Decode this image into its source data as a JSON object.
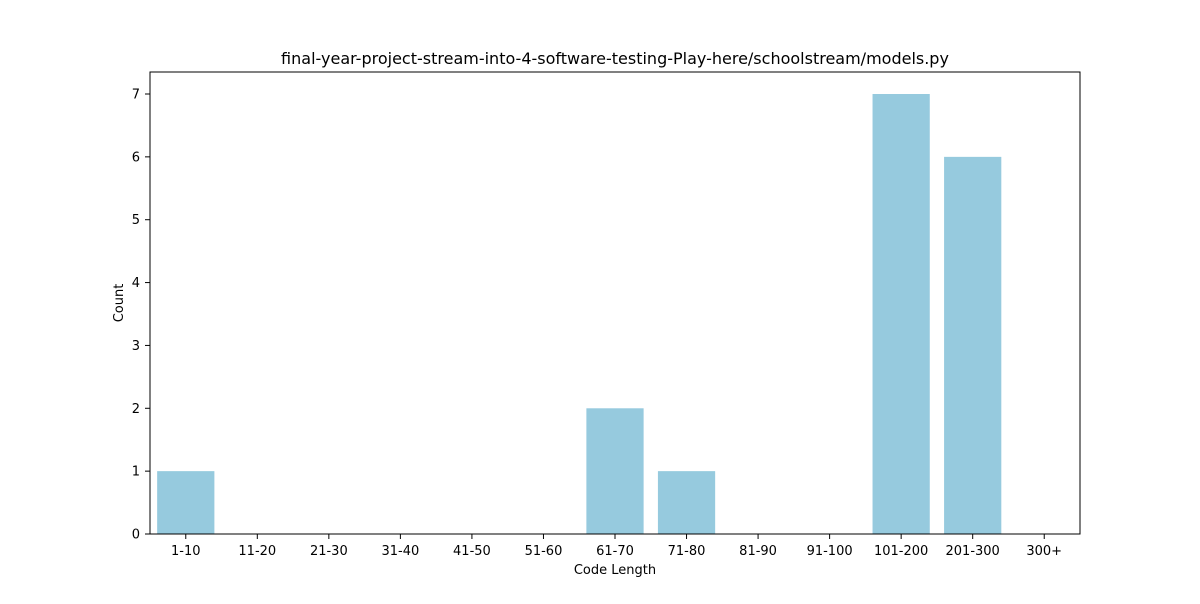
{
  "chart_data": {
    "type": "bar",
    "title": "final-year-project-stream-into-4-software-testing-Play-here/schoolstream/models.py",
    "xlabel": "Code Length",
    "ylabel": "Count",
    "categories": [
      "1-10",
      "11-20",
      "21-30",
      "31-40",
      "41-50",
      "51-60",
      "61-70",
      "71-80",
      "81-90",
      "91-100",
      "101-200",
      "201-300",
      "300+"
    ],
    "values": [
      1,
      0,
      0,
      0,
      0,
      0,
      2,
      1,
      0,
      0,
      7,
      6,
      0
    ],
    "ylim": [
      0,
      7.35
    ],
    "yticks": [
      0,
      1,
      2,
      3,
      4,
      5,
      6,
      7
    ],
    "grid": false,
    "bar_color": "#96cade",
    "axis_color": "#000000"
  }
}
